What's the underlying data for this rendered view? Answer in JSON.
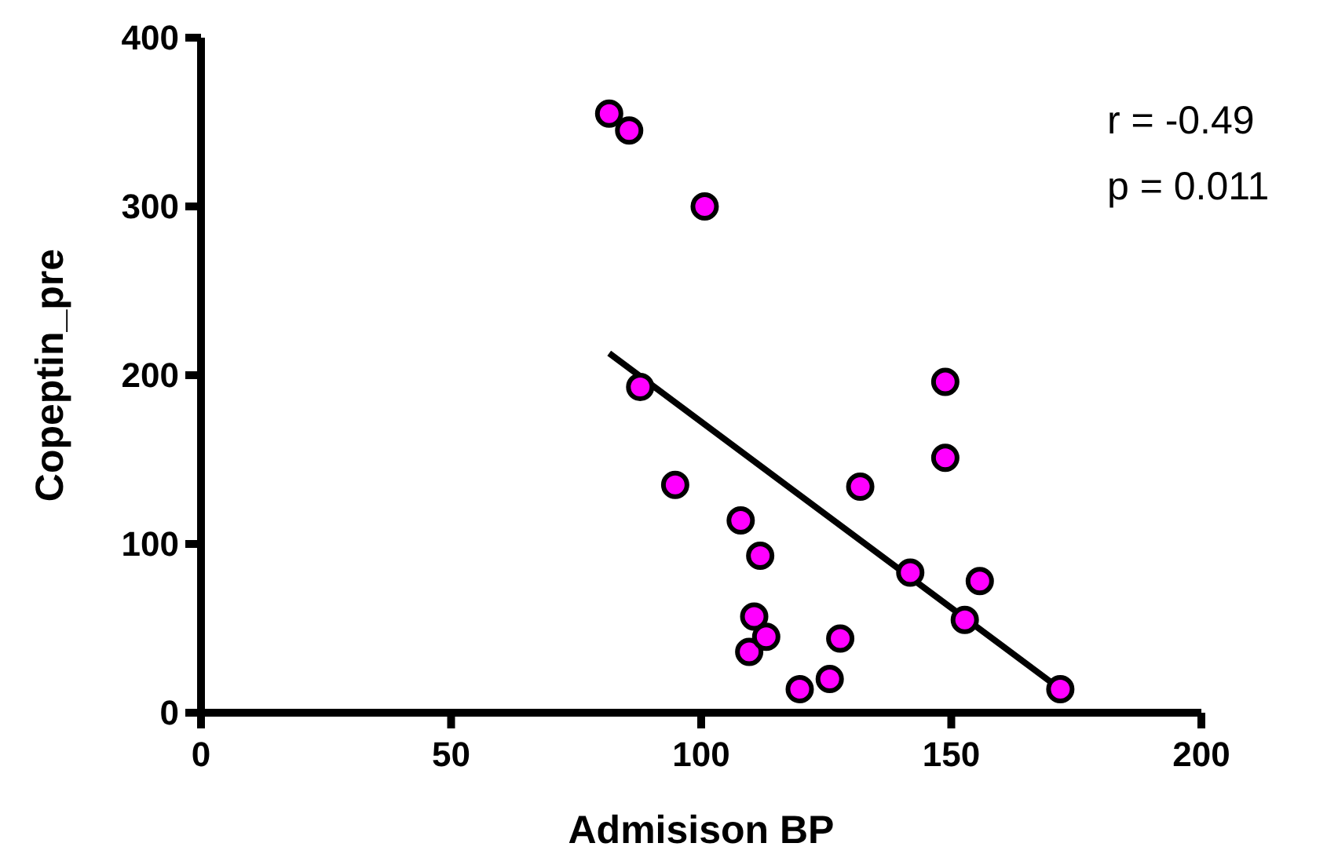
{
  "chart_data": {
    "type": "scatter",
    "xlabel": "Admisison BP",
    "ylabel": "Copeptin_pre",
    "xlim": [
      0,
      200
    ],
    "ylim": [
      0,
      400
    ],
    "xticks": [
      0,
      50,
      100,
      150,
      200
    ],
    "yticks": [
      0,
      100,
      200,
      300,
      400
    ],
    "grid": false,
    "annotations": [
      "r = -0.49",
      "p = 0.011"
    ],
    "series": [
      {
        "color": "#ff00ff",
        "marker": "circle",
        "x": [
          81.6,
          85.6,
          100.7,
          87.8,
          94.8,
          107.9,
          111.8,
          110.6,
          109.6,
          113,
          119.7,
          125.7,
          127.8,
          131.8,
          141.8,
          148.8,
          148.8,
          152.7,
          155.7,
          171.8
        ],
        "values": [
          355,
          345,
          300,
          193,
          135,
          114,
          93,
          57,
          36,
          45,
          14,
          20,
          44,
          134,
          83,
          196,
          151,
          55,
          78,
          14
        ]
      },
      {
        "type": "line",
        "color": "#000000",
        "marker": "none",
        "x": [
          81.6,
          171.8
        ],
        "values": [
          213,
          14
        ]
      }
    ]
  }
}
